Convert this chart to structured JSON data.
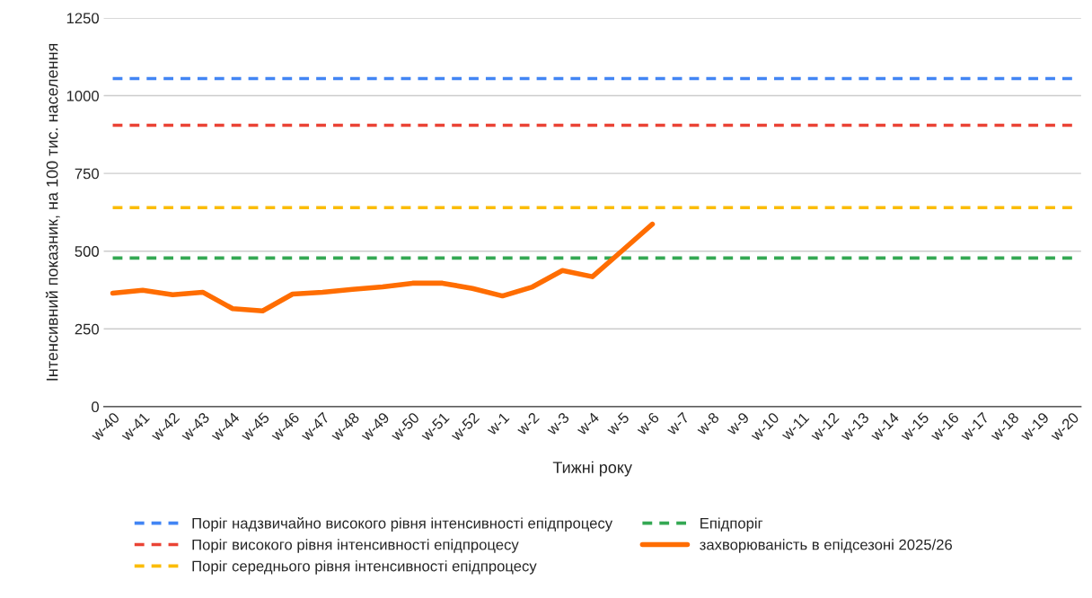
{
  "chart_data": {
    "type": "line",
    "xlabel": "Тижні року",
    "ylabel": "Інтенсивний показник, на 100 тис. населення",
    "categories": [
      "w-40",
      "w-41",
      "w-42",
      "w-43",
      "w-44",
      "w-45",
      "w-46",
      "w-47",
      "w-48",
      "w-49",
      "w-50",
      "w-51",
      "w-52",
      "w-1",
      "w-2",
      "w-3",
      "w-4",
      "w-5",
      "w-6",
      "w-7",
      "w-8",
      "w-9",
      "w-10",
      "w-11",
      "w-12",
      "w-13",
      "w-14",
      "w-15",
      "w-16",
      "w-17",
      "w-18",
      "w-19",
      "w-20"
    ],
    "series": [
      {
        "name": "Поріг надзвичайно високого рівня інтенсивності епідпроцесу",
        "color": "#4285f4",
        "line_style": "dashed",
        "values": [
          1055,
          1055,
          1055,
          1055,
          1055,
          1055,
          1055,
          1055,
          1055,
          1055,
          1055,
          1055,
          1055,
          1055,
          1055,
          1055,
          1055,
          1055,
          1055,
          1055,
          1055,
          1055,
          1055,
          1055,
          1055,
          1055,
          1055,
          1055,
          1055,
          1055,
          1055,
          1055,
          1055
        ]
      },
      {
        "name": "Поріг високого рівня інтенсивності епідпроцесу",
        "color": "#ea4335",
        "line_style": "dashed",
        "values": [
          905,
          905,
          905,
          905,
          905,
          905,
          905,
          905,
          905,
          905,
          905,
          905,
          905,
          905,
          905,
          905,
          905,
          905,
          905,
          905,
          905,
          905,
          905,
          905,
          905,
          905,
          905,
          905,
          905,
          905,
          905,
          905,
          905
        ]
      },
      {
        "name": "Поріг середнього рівня інтенсивності епідпроцесу",
        "color": "#fbbc04",
        "line_style": "dashed",
        "values": [
          640,
          640,
          640,
          640,
          640,
          640,
          640,
          640,
          640,
          640,
          640,
          640,
          640,
          640,
          640,
          640,
          640,
          640,
          640,
          640,
          640,
          640,
          640,
          640,
          640,
          640,
          640,
          640,
          640,
          640,
          640,
          640,
          640
        ]
      },
      {
        "name": "Епідпоріг",
        "color": "#34a853",
        "line_style": "dashed",
        "values": [
          478,
          478,
          478,
          478,
          478,
          478,
          478,
          478,
          478,
          478,
          478,
          478,
          478,
          478,
          478,
          478,
          478,
          478,
          478,
          478,
          478,
          478,
          478,
          478,
          478,
          478,
          478,
          478,
          478,
          478,
          478,
          478,
          478
        ]
      },
      {
        "name": "захворюваність в епідсезоні 2025/26",
        "color": "#ff6d01",
        "line_style": "solid",
        "values": [
          365,
          374,
          360,
          368,
          315,
          308,
          362,
          368,
          377,
          385,
          397,
          397,
          380,
          356,
          385,
          438,
          418,
          502,
          587,
          null,
          null,
          null,
          null,
          null,
          null,
          null,
          null,
          null,
          null,
          null,
          null,
          null,
          null
        ]
      }
    ],
    "ylim": [
      0,
      1250
    ],
    "yticks": [
      0,
      250,
      500,
      750,
      1000,
      1250
    ],
    "grid": "y",
    "legend": "bottom"
  }
}
